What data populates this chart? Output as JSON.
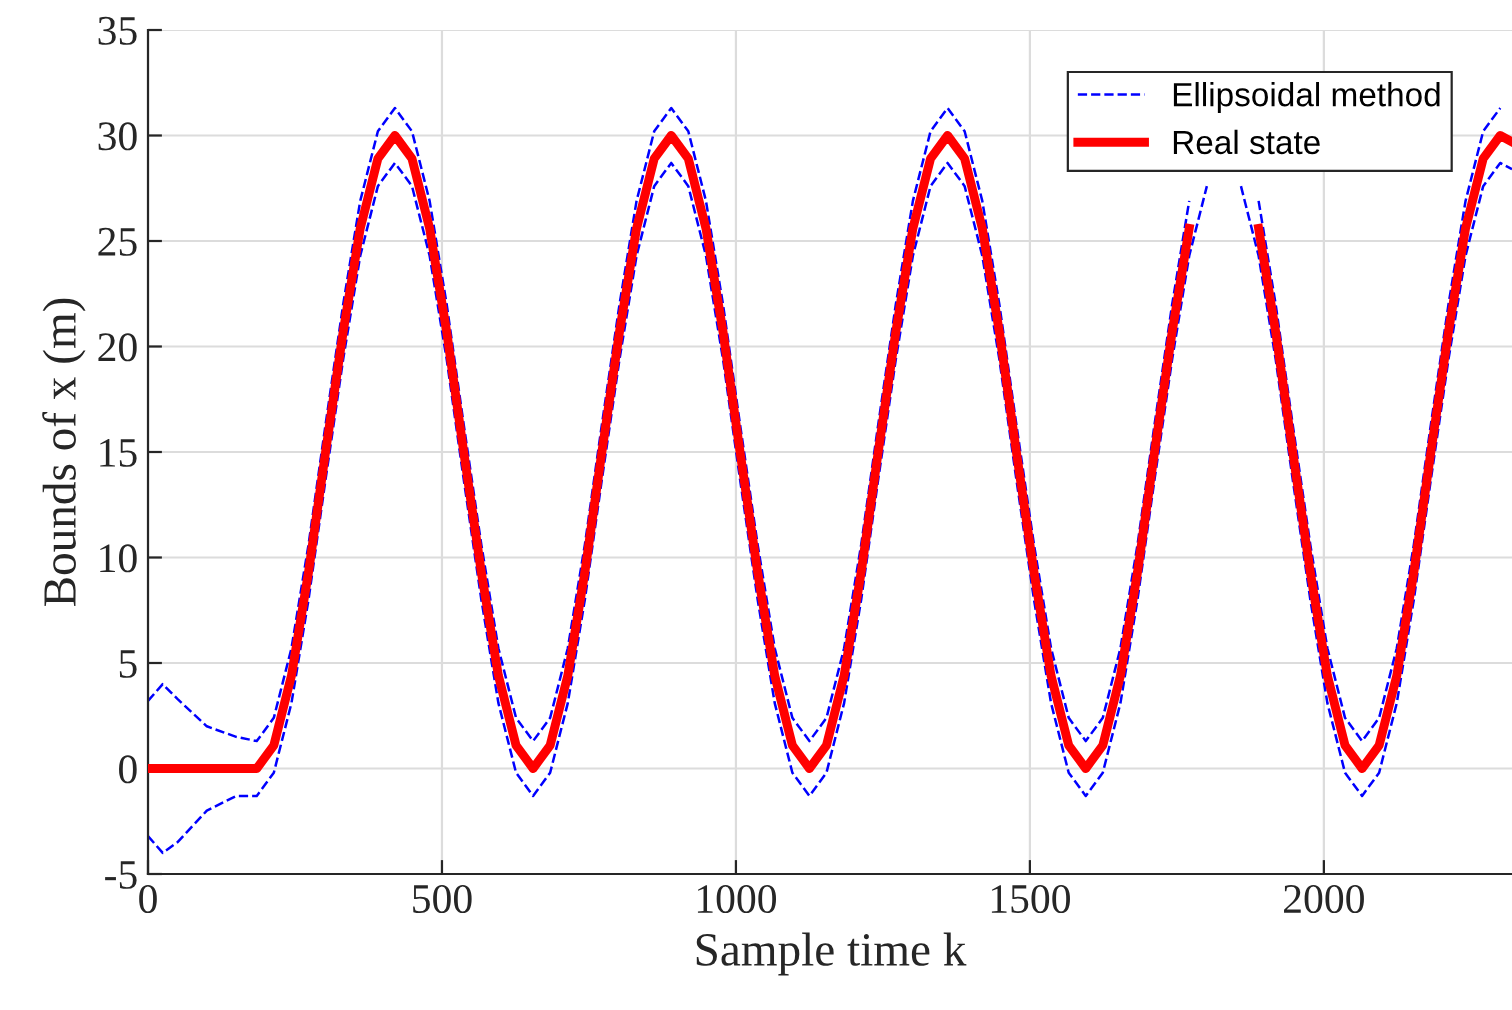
{
  "chart_data": {
    "type": "line",
    "xlabel": "Sample time k",
    "ylabel": "Bounds of x (m)",
    "xlim": [
      0,
      2320
    ],
    "ylim": [
      -5,
      35
    ],
    "xticks": [
      0,
      500,
      1000,
      1500,
      2000
    ],
    "yticks": [
      {
        "value": -5,
        "label": "-5"
      },
      0,
      5,
      10,
      15,
      20,
      25,
      30,
      35
    ],
    "grid": true,
    "legend": "top right",
    "series": [
      {
        "name": "Ellipsoidal method",
        "color": "#0000ff",
        "line_style": "dashed",
        "x": [
          0,
          25,
          50,
          100,
          150,
          185,
          214,
          244,
          273,
          302,
          332,
          361,
          391,
          420,
          449,
          479,
          508,
          537,
          567,
          596,
          626,
          655,
          684,
          714,
          743,
          772,
          802,
          831,
          861,
          890,
          919,
          949,
          978,
          1007,
          1037,
          1066,
          1096,
          1125,
          1154,
          1184,
          1213,
          1242,
          1272,
          1301,
          1331,
          1360,
          1389,
          1419,
          1448,
          1477,
          1507,
          1536,
          1566,
          1595,
          1624,
          1654,
          1683,
          1712,
          1742,
          1771,
          1801,
          1830,
          1859,
          1889,
          1918,
          1947,
          1977,
          2006,
          2036,
          2065,
          2094,
          2124,
          2153,
          2182,
          2212,
          2241,
          2271,
          2300
        ],
        "values": [
          3.2,
          4,
          3.3,
          2,
          1.5,
          1.3,
          2.4,
          5.7,
          10.6,
          16.3,
          22,
          26.9,
          30.2,
          31.3,
          30.2,
          26.9,
          22,
          16.3,
          10.6,
          5.7,
          2.4,
          1.3,
          2.4,
          5.7,
          10.6,
          16.3,
          22,
          26.9,
          30.2,
          31.3,
          30.2,
          26.9,
          22,
          16.3,
          10.6,
          5.7,
          2.4,
          1.3,
          2.4,
          5.7,
          10.6,
          16.3,
          22,
          26.9,
          30.2,
          31.3,
          30.2,
          26.9,
          22,
          16.3,
          10.6,
          5.7,
          2.4,
          1.3,
          2.4,
          5.7,
          10.6,
          16.3,
          22,
          26.9,
          null,
          null,
          null,
          26.9,
          22,
          16.3,
          10.6,
          5.7,
          2.4,
          1.3,
          2.4,
          5.7,
          10.6,
          16.3,
          22,
          26.9,
          30.2,
          31.3
        ]
      },
      {
        "color": "#0000ff",
        "line_style": "dashed",
        "x": [
          0,
          25,
          50,
          100,
          150,
          185,
          214,
          244,
          273,
          302,
          332,
          361,
          391,
          420,
          449,
          479,
          508,
          537,
          567,
          596,
          626,
          655,
          684,
          714,
          743,
          772,
          802,
          831,
          861,
          890,
          919,
          949,
          978,
          1007,
          1037,
          1066,
          1096,
          1125,
          1154,
          1184,
          1213,
          1242,
          1272,
          1301,
          1331,
          1360,
          1389,
          1419,
          1448,
          1477,
          1507,
          1536,
          1566,
          1595,
          1624,
          1654,
          1683,
          1712,
          1742,
          1771,
          1801,
          1830,
          1859,
          1889,
          1918,
          1947,
          1977,
          2006,
          2036,
          2065,
          2094,
          2124,
          2153,
          2182,
          2212,
          2241,
          2271,
          2300,
          2320
        ],
        "values": [
          -3.2,
          -4,
          -3.5,
          -2,
          -1.3,
          -1.3,
          -0.2,
          3.1,
          8,
          13.7,
          19.4,
          24.3,
          27.6,
          28.7,
          27.6,
          24.3,
          19.4,
          13.7,
          8,
          3.1,
          -0.2,
          -1.3,
          -0.2,
          3.1,
          8,
          13.7,
          19.4,
          24.3,
          27.6,
          28.7,
          27.6,
          24.3,
          19.4,
          13.7,
          8,
          3.1,
          -0.2,
          -1.3,
          -0.2,
          3.1,
          8,
          13.7,
          19.4,
          24.3,
          27.6,
          28.7,
          27.6,
          24.3,
          19.4,
          13.7,
          8,
          3.1,
          -0.2,
          -1.3,
          -0.2,
          3.1,
          8,
          13.7,
          19.4,
          24.3,
          27.6,
          null,
          27.6,
          24.3,
          19.4,
          13.7,
          8,
          3.1,
          -0.2,
          -1.3,
          -0.2,
          3.1,
          8,
          13.7,
          19.4,
          24.3,
          27.6,
          28.7,
          28.4
        ]
      },
      {
        "name": "Real state",
        "color": "#ff0000",
        "line_style": "solid",
        "x": [
          0,
          100,
          185,
          214,
          244,
          273,
          302,
          332,
          361,
          391,
          420,
          449,
          479,
          508,
          537,
          567,
          596,
          626,
          655,
          684,
          714,
          743,
          772,
          802,
          831,
          861,
          890,
          919,
          949,
          978,
          1007,
          1037,
          1066,
          1096,
          1125,
          1154,
          1184,
          1213,
          1242,
          1272,
          1301,
          1331,
          1360,
          1389,
          1419,
          1448,
          1477,
          1507,
          1536,
          1566,
          1595,
          1624,
          1654,
          1683,
          1712,
          1742,
          1771,
          1801,
          1830,
          1859,
          1889,
          1918,
          1947,
          1977,
          2006,
          2036,
          2065,
          2094,
          2124,
          2153,
          2182,
          2212,
          2241,
          2271,
          2300,
          2320
        ],
        "values": [
          0,
          0,
          0,
          1.1,
          4.4,
          9.3,
          15,
          20.7,
          25.6,
          28.9,
          30,
          28.9,
          25.6,
          20.7,
          15,
          9.3,
          4.4,
          1.1,
          0,
          1.1,
          4.4,
          9.3,
          15,
          20.7,
          25.6,
          28.9,
          30,
          28.9,
          25.6,
          20.7,
          15,
          9.3,
          4.4,
          1.1,
          0,
          1.1,
          4.4,
          9.3,
          15,
          20.7,
          25.6,
          28.9,
          30,
          28.9,
          25.6,
          20.7,
          15,
          9.3,
          4.4,
          1.1,
          0,
          1.1,
          4.4,
          9.3,
          15,
          20.7,
          25.6,
          null,
          null,
          null,
          25.6,
          20.7,
          15,
          9.3,
          4.4,
          1.1,
          0,
          1.1,
          4.4,
          9.3,
          15,
          20.7,
          25.6,
          28.9,
          30,
          29.7
        ]
      }
    ]
  }
}
